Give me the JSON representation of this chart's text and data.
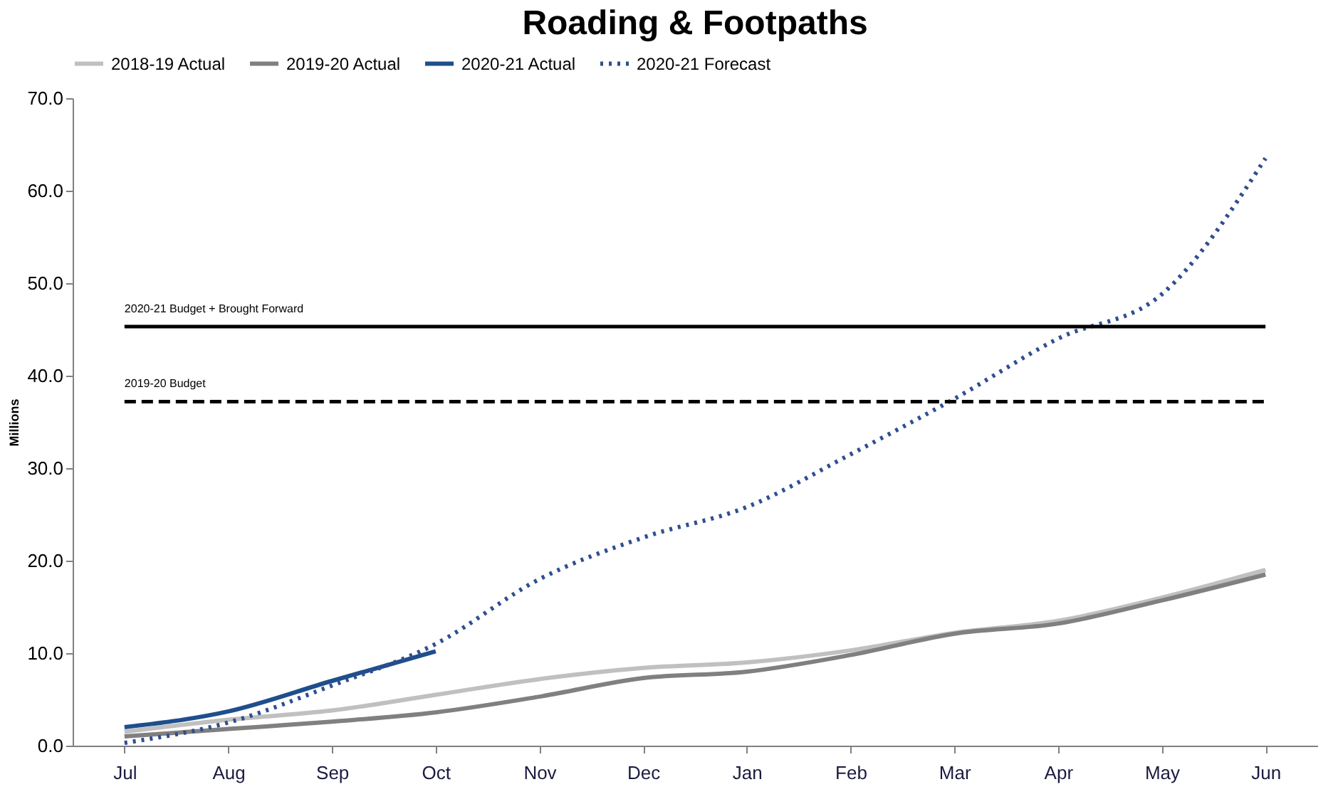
{
  "chart_data": {
    "type": "line",
    "title": "Roading & Footpaths",
    "ylabel": "Millions",
    "categories": [
      "Jul",
      "Aug",
      "Sep",
      "Oct",
      "Nov",
      "Dec",
      "Jan",
      "Feb",
      "Mar",
      "Apr",
      "May",
      "Jun"
    ],
    "series": [
      {
        "name": "2018-19 Actual",
        "color": "#c0c0c0",
        "line_style": "solid",
        "values": [
          1.5,
          2.8,
          3.8,
          5.5,
          7.2,
          8.4,
          9.0,
          10.3,
          12.2,
          13.5,
          16.0,
          19.0
        ]
      },
      {
        "name": "2019-20 Actual",
        "color": "#808080",
        "line_style": "solid",
        "values": [
          1.0,
          1.8,
          2.6,
          3.6,
          5.3,
          7.3,
          8.0,
          9.8,
          12.1,
          13.2,
          15.7,
          18.5
        ]
      },
      {
        "name": "2020-21 Actual",
        "color": "#1f4e8c",
        "line_style": "solid",
        "values": [
          2.0,
          3.7,
          7.0,
          10.2,
          null,
          null,
          null,
          null,
          null,
          null,
          null,
          null
        ]
      },
      {
        "name": "2020-21 Forecast",
        "color": "#2f4f8f",
        "line_style": "dotted",
        "values": [
          0.3,
          2.5,
          6.5,
          11.0,
          18.0,
          22.5,
          25.8,
          31.5,
          37.5,
          44.0,
          48.8,
          63.5
        ]
      }
    ],
    "ref_lines": [
      {
        "axis": "y",
        "value": 45.3,
        "label": "2020-21 Budget + Brought Forward",
        "color": "#000000",
        "line_style": "solid"
      },
      {
        "axis": "y",
        "value": 37.2,
        "label": "2019-20 Budget",
        "color": "#000000",
        "line_style": "dashed"
      }
    ],
    "ylim": [
      0,
      70
    ],
    "yticks": [
      {
        "value": 0,
        "label": "0.0"
      },
      {
        "value": 10,
        "label": "10.0"
      },
      {
        "value": 20,
        "label": "20.0"
      },
      {
        "value": 30,
        "label": "30.0"
      },
      {
        "value": 40,
        "label": "40.0"
      },
      {
        "value": 50,
        "label": "50.0"
      },
      {
        "value": 60,
        "label": "60.0"
      },
      {
        "value": 70,
        "label": "70.0"
      }
    ],
    "grid": false,
    "legend": "top",
    "marker": "none"
  }
}
